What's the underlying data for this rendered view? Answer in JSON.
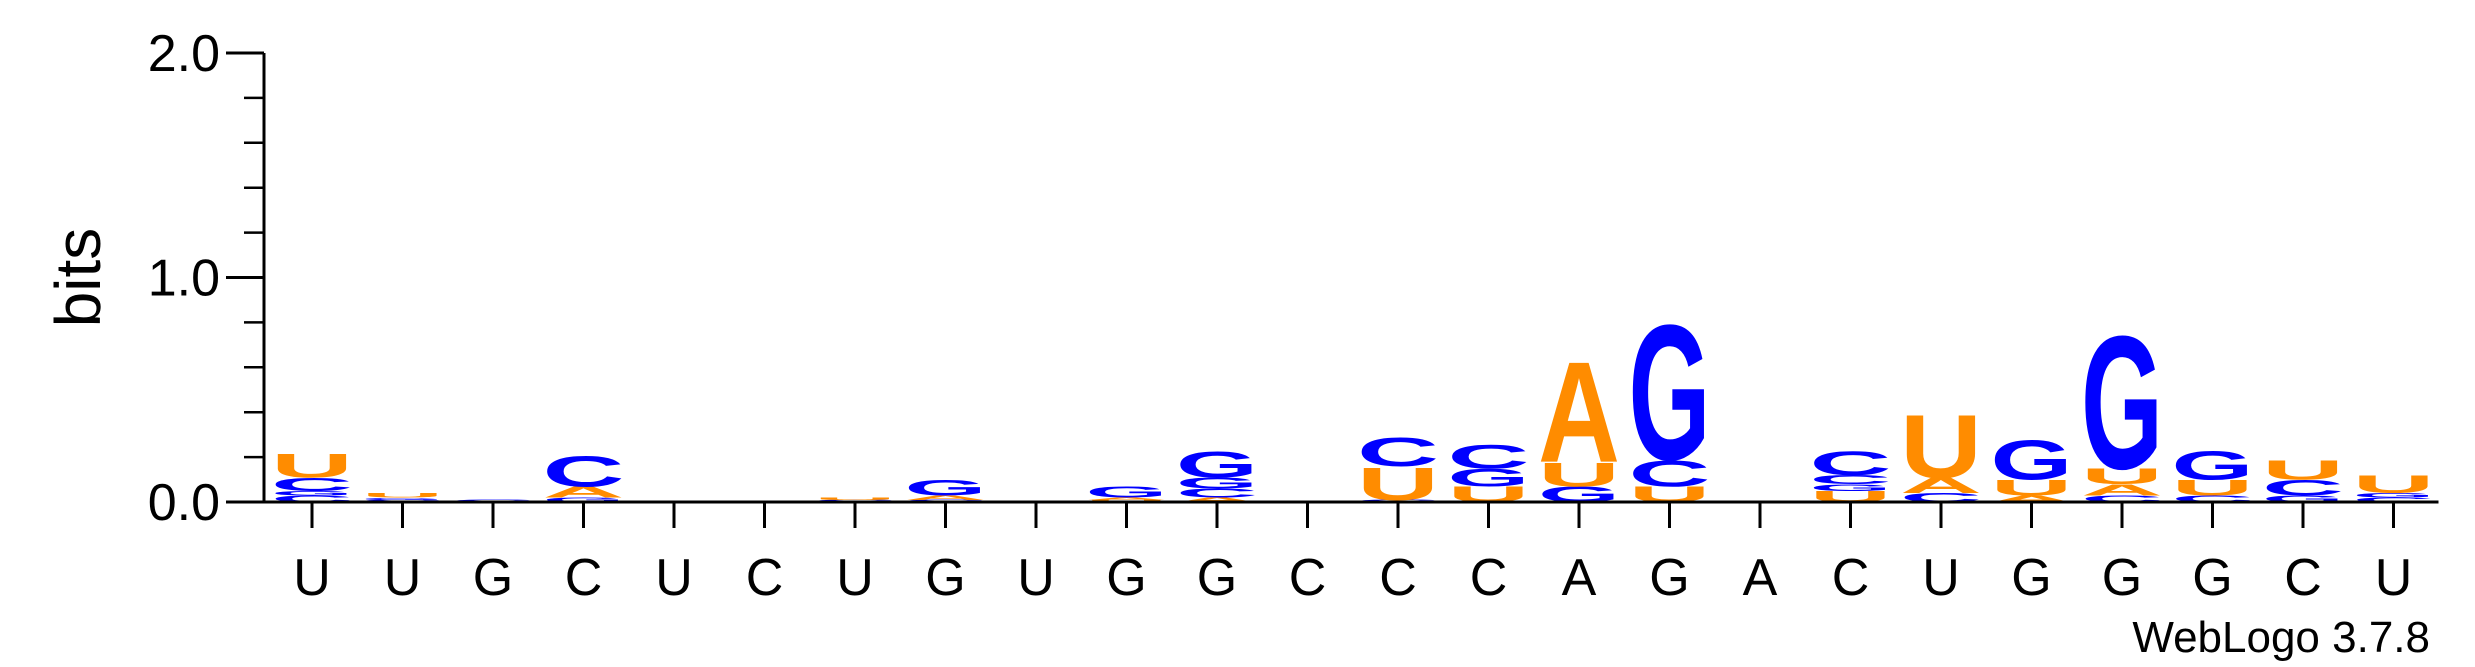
{
  "chart_data": {
    "type": "sequence-logo",
    "ylabel": "bits",
    "ylim": [
      0,
      2.0
    ],
    "yticks": [
      {
        "value": 0.0,
        "label": "0.0"
      },
      {
        "value": 1.0,
        "label": "1.0"
      },
      {
        "value": 2.0,
        "label": "2.0"
      }
    ],
    "positions": [
      {
        "label": "U",
        "letters": [
          {
            "l": "C",
            "h": 0.03
          },
          {
            "l": "G",
            "h": 0.02
          },
          {
            "l": "C",
            "h": 0.06
          },
          {
            "l": "U",
            "h": 0.11
          }
        ]
      },
      {
        "label": "U",
        "letters": [
          {
            "l": "C",
            "h": 0.01
          },
          {
            "l": "G",
            "h": 0.01
          },
          {
            "l": "U",
            "h": 0.02
          }
        ]
      },
      {
        "label": "G",
        "letters": [
          {
            "l": "C",
            "h": 0.01
          }
        ]
      },
      {
        "label": "C",
        "letters": [
          {
            "l": "G",
            "h": 0.02
          },
          {
            "l": "A",
            "h": 0.05
          },
          {
            "l": "C",
            "h": 0.14
          }
        ]
      },
      {
        "label": "U",
        "letters": [
          {
            "l": "C",
            "h": 0.005
          }
        ]
      },
      {
        "label": "C",
        "letters": [
          {
            "l": "U",
            "h": 0.005
          }
        ]
      },
      {
        "label": "U",
        "letters": [
          {
            "l": "C",
            "h": 0.01
          },
          {
            "l": "U",
            "h": 0.01
          }
        ]
      },
      {
        "label": "G",
        "letters": [
          {
            "l": "C",
            "h": 0.01
          },
          {
            "l": "A",
            "h": 0.02
          },
          {
            "l": "G",
            "h": 0.07
          }
        ]
      },
      {
        "label": "U",
        "letters": [
          {
            "l": "C",
            "h": 0.005
          }
        ]
      },
      {
        "label": "G",
        "letters": [
          {
            "l": "U",
            "h": 0.01
          },
          {
            "l": "A",
            "h": 0.01
          },
          {
            "l": "G",
            "h": 0.05
          }
        ]
      },
      {
        "label": "G",
        "letters": [
          {
            "l": "A",
            "h": 0.02
          },
          {
            "l": "C",
            "h": 0.04
          },
          {
            "l": "G",
            "h": 0.05
          },
          {
            "l": "G",
            "h": 0.12
          }
        ]
      },
      {
        "label": "C",
        "letters": []
      },
      {
        "label": "C",
        "letters": [
          {
            "l": "C",
            "h": 0.01
          },
          {
            "l": "U",
            "h": 0.15
          },
          {
            "l": "C",
            "h": 0.13
          }
        ]
      },
      {
        "label": "C",
        "letters": [
          {
            "l": "U",
            "h": 0.07
          },
          {
            "l": "G",
            "h": 0.08
          },
          {
            "l": "C",
            "h": 0.11
          }
        ]
      },
      {
        "label": "A",
        "letters": [
          {
            "l": "G",
            "h": 0.07
          },
          {
            "l": "U",
            "h": 0.11
          },
          {
            "l": "A",
            "h": 0.46
          }
        ]
      },
      {
        "label": "G",
        "letters": [
          {
            "l": "U",
            "h": 0.07
          },
          {
            "l": "C",
            "h": 0.12
          },
          {
            "l": "G",
            "h": 0.62
          }
        ]
      },
      {
        "label": "A",
        "letters": []
      },
      {
        "label": "C",
        "letters": [
          {
            "l": "U",
            "h": 0.05
          },
          {
            "l": "G",
            "h": 0.03
          },
          {
            "l": "C",
            "h": 0.04
          },
          {
            "l": "C",
            "h": 0.11
          }
        ]
      },
      {
        "label": "U",
        "letters": [
          {
            "l": "C",
            "h": 0.04
          },
          {
            "l": "A",
            "h": 0.07
          },
          {
            "l": "U",
            "h": 0.29
          }
        ]
      },
      {
        "label": "G",
        "letters": [
          {
            "l": "A",
            "h": 0.03
          },
          {
            "l": "U",
            "h": 0.07
          },
          {
            "l": "G",
            "h": 0.18
          }
        ]
      },
      {
        "label": "G",
        "letters": [
          {
            "l": "C",
            "h": 0.03
          },
          {
            "l": "A",
            "h": 0.05
          },
          {
            "l": "U",
            "h": 0.07
          },
          {
            "l": "G",
            "h": 0.61
          }
        ]
      },
      {
        "label": "G",
        "letters": [
          {
            "l": "C",
            "h": 0.03
          },
          {
            "l": "U",
            "h": 0.07
          },
          {
            "l": "G",
            "h": 0.13
          }
        ]
      },
      {
        "label": "C",
        "letters": [
          {
            "l": "G",
            "h": 0.03
          },
          {
            "l": "C",
            "h": 0.07
          },
          {
            "l": "U",
            "h": 0.09
          }
        ]
      },
      {
        "label": "U",
        "letters": [
          {
            "l": "C",
            "h": 0.02
          },
          {
            "l": "G",
            "h": 0.02
          },
          {
            "l": "U",
            "h": 0.08
          }
        ]
      }
    ],
    "colors": {
      "A": "#ff8c00",
      "U": "#ff8c00",
      "C": "#0000ff",
      "G": "#0000ff"
    },
    "credit": "WebLogo 3.7.8"
  }
}
